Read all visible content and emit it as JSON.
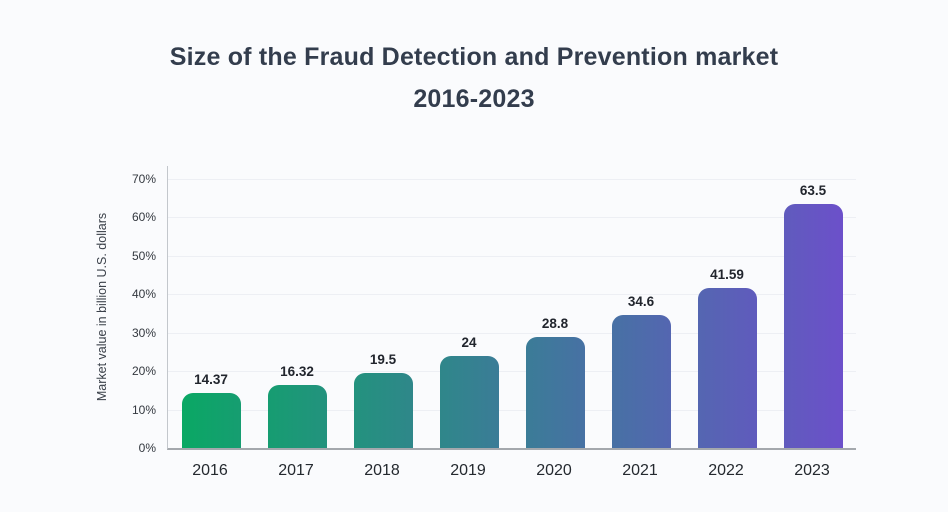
{
  "header": {
    "title_line1": "Size of the Fraud Detection and Prevention market",
    "title_line2": "2016-2023"
  },
  "colors": {
    "background": "#fafbfd",
    "title_text": "#333d4d",
    "axis_line": "#a4a8ad",
    "gridline": "#edeff4",
    "gradient_start": "#0aa864",
    "gradient_end": "#6c50ca"
  },
  "chart_data": {
    "type": "bar",
    "title": "Size of the Fraud Detection and Prevention market 2016-2023",
    "xlabel": "",
    "ylabel": "Market value in billion U.S. dollars",
    "categories": [
      "2016",
      "2017",
      "2018",
      "2019",
      "2020",
      "2021",
      "2022",
      "2023"
    ],
    "values": [
      14.37,
      16.32,
      19.5,
      24,
      28.8,
      34.6,
      41.59,
      63.5
    ],
    "value_labels": [
      "14.37",
      "16.32",
      "19.5",
      "24",
      "28.8",
      "34.6",
      "41.59",
      "63.5"
    ],
    "y_ticks": [
      {
        "value": 0,
        "label": "0%"
      },
      {
        "value": 10,
        "label": "10%"
      },
      {
        "value": 20,
        "label": "20%"
      },
      {
        "value": 30,
        "label": "30%"
      },
      {
        "value": 40,
        "label": "40%"
      },
      {
        "value": 50,
        "label": "50%"
      },
      {
        "value": 60,
        "label": "60%"
      },
      {
        "value": 70,
        "label": "70%"
      }
    ],
    "ylim": [
      0,
      70
    ],
    "grid": true,
    "legend": false,
    "bar_colors": [
      [
        "#0aa864",
        "#169d71"
      ],
      [
        "#169d71",
        "#23927e"
      ],
      [
        "#23927e",
        "#2f878a"
      ],
      [
        "#2f878a",
        "#3b7c97"
      ],
      [
        "#3b7c97",
        "#4771a4"
      ],
      [
        "#4771a4",
        "#5466b1"
      ],
      [
        "#5466b1",
        "#605bbd"
      ],
      [
        "#605bbd",
        "#6c50ca"
      ]
    ]
  }
}
